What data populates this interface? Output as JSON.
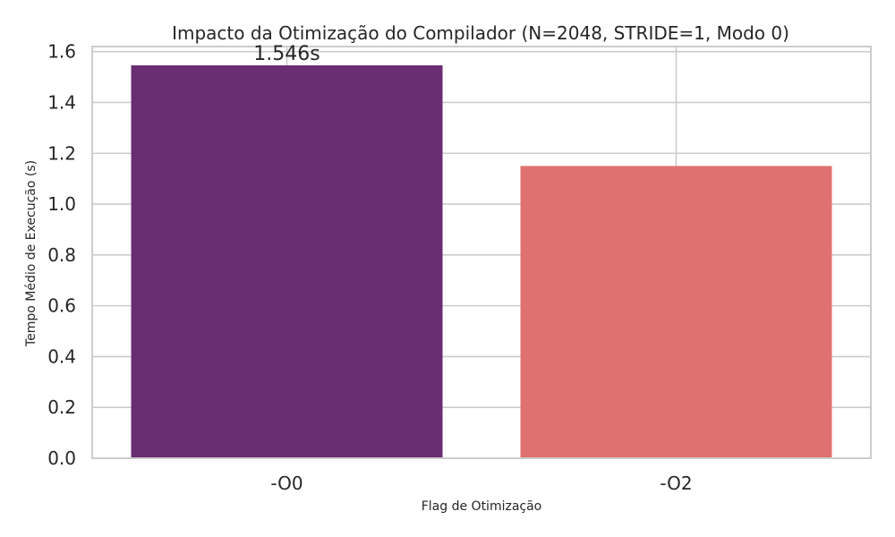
{
  "chart_data": {
    "type": "bar",
    "title": "Impacto da Otimização do Compilador (N=2048, STRIDE=1, Modo 0)",
    "xlabel": "Flag de Otimização",
    "ylabel": "Tempo Médio de Execução (s)",
    "categories": [
      "-O0",
      "-O2"
    ],
    "values": [
      1.546,
      1.15
    ],
    "bar_colors": [
      "#6a2c73",
      "#df7270"
    ],
    "data_labels": [
      "1.546s",
      ""
    ],
    "ylim": [
      0,
      1.62
    ],
    "yticks": [
      0.0,
      0.2,
      0.4,
      0.6,
      0.8,
      1.0,
      1.2,
      1.4,
      1.6
    ],
    "ytick_labels": [
      "0.0",
      "0.2",
      "0.4",
      "0.6",
      "0.8",
      "1.0",
      "1.2",
      "1.4",
      "1.6"
    ],
    "grid": true,
    "legend": "none"
  }
}
